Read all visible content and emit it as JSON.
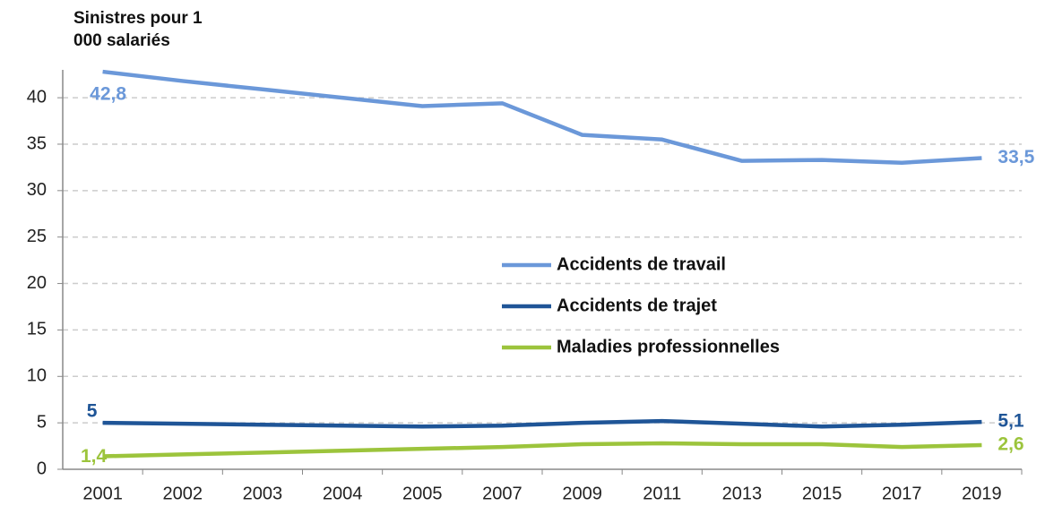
{
  "chart_data": {
    "type": "line",
    "y_label": "Sinistres pour 1 000 salariés",
    "categories": [
      "2001",
      "2002",
      "2003",
      "2004",
      "2005",
      "2007",
      "2009",
      "2011",
      "2013",
      "2015",
      "2017",
      "2019"
    ],
    "series": [
      {
        "name": "Accidents de travail",
        "color": "#6b98d9",
        "values": [
          42.8,
          41.8,
          40.9,
          40.0,
          39.1,
          39.4,
          36.0,
          35.5,
          33.2,
          33.3,
          33.0,
          33.5
        ],
        "value_labels": [
          "42,8",
          null,
          null,
          null,
          null,
          null,
          null,
          null,
          null,
          null,
          null,
          "33,5"
        ]
      },
      {
        "name": "Accidents de trajet",
        "color": "#1f5597",
        "values": [
          5,
          4.9,
          4.8,
          4.7,
          4.6,
          4.7,
          5.0,
          5.2,
          4.9,
          4.6,
          4.8,
          5.1
        ],
        "value_labels": [
          "5",
          null,
          null,
          null,
          null,
          null,
          null,
          null,
          null,
          null,
          null,
          "5,1"
        ]
      },
      {
        "name": "Maladies professionnelles",
        "color": "#9cc43c",
        "values": [
          1.4,
          1.6,
          1.8,
          2.0,
          2.2,
          2.4,
          2.7,
          2.8,
          2.7,
          2.7,
          2.4,
          2.6
        ],
        "value_labels": [
          "1,4",
          null,
          null,
          null,
          null,
          null,
          null,
          null,
          null,
          null,
          null,
          "2,6"
        ]
      }
    ],
    "ylim": [
      0,
      43
    ],
    "yticks": [
      0,
      5,
      10,
      15,
      20,
      25,
      30,
      35,
      40
    ],
    "grid": true
  }
}
